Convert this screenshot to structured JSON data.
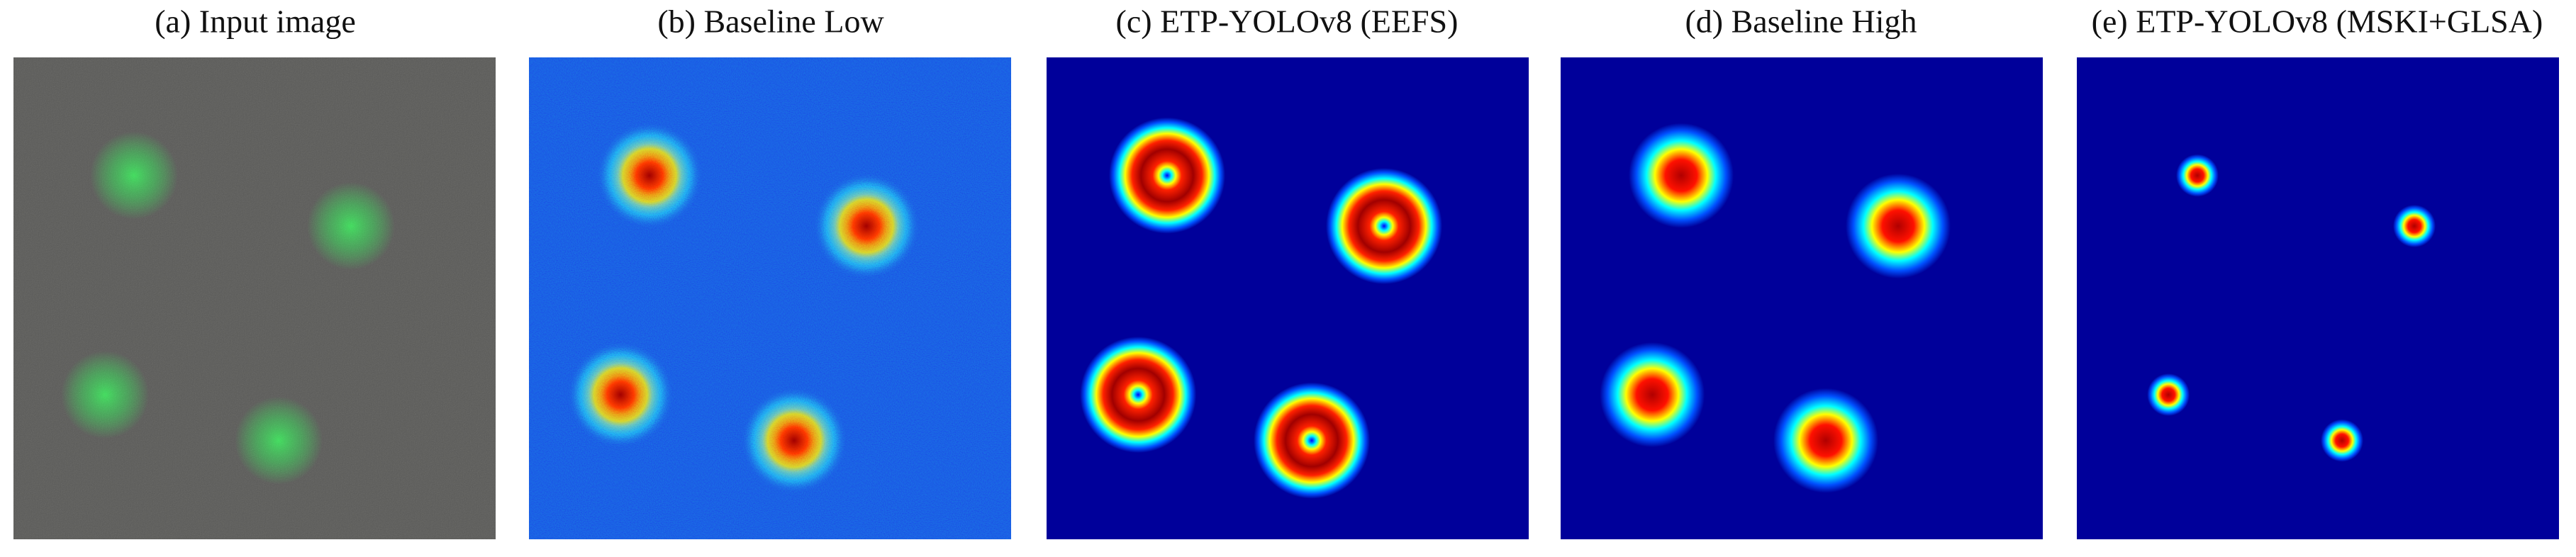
{
  "panels": [
    {
      "caption": "(a) Input image"
    },
    {
      "caption": "(b) Baseline Low"
    },
    {
      "caption": "(c) ETP-YOLOv8 (EEFS)"
    },
    {
      "caption": "(d) Baseline High"
    },
    {
      "caption": "(e) ETP-YOLOv8 (MSKI+GLSA)"
    }
  ]
}
